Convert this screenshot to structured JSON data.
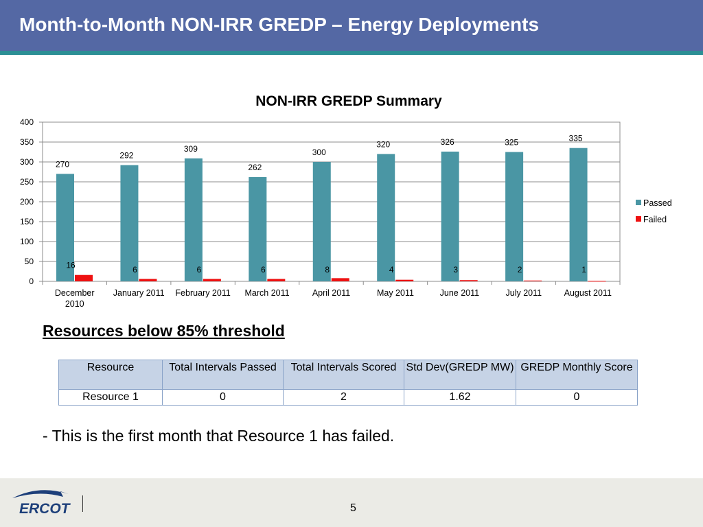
{
  "slide": {
    "title": "Month-to-Month NON-IRR GREDP – Energy Deployments",
    "subheading": "Resources below 85% threshold",
    "note": "- This is the first month that Resource 1 has failed.",
    "page_number": "5",
    "logo_text": "ERCOT"
  },
  "colors": {
    "header": "#5468a4",
    "stripe": "#2c8f95",
    "passed": "#4a96a4",
    "failed": "#ee1111"
  },
  "chart_data": {
    "type": "bar",
    "title": "NON-IRR GREDP Summary",
    "categories": [
      "December 2010",
      "January 2011",
      "February 2011",
      "March 2011",
      "April 2011",
      "May 2011",
      "June 2011",
      "July 2011",
      "August 2011"
    ],
    "series": [
      {
        "name": "Passed",
        "color": "#4a96a4",
        "values": [
          270,
          292,
          309,
          262,
          300,
          320,
          326,
          325,
          335
        ]
      },
      {
        "name": "Failed",
        "color": "#ee1111",
        "values": [
          16,
          6,
          6,
          6,
          8,
          4,
          3,
          2,
          1
        ]
      }
    ],
    "ylim": [
      0,
      400
    ],
    "yticks": [
      0,
      50,
      100,
      150,
      200,
      250,
      300,
      350,
      400
    ],
    "grid": true,
    "legend": "right"
  },
  "table": {
    "headers": [
      "Resource",
      "Total Intervals Passed",
      "Total Intervals Scored",
      "Std Dev(GREDP MW)",
      "GREDP Monthly Score"
    ],
    "rows": [
      [
        "Resource 1",
        "0",
        "2",
        "1.62",
        "0"
      ]
    ]
  }
}
